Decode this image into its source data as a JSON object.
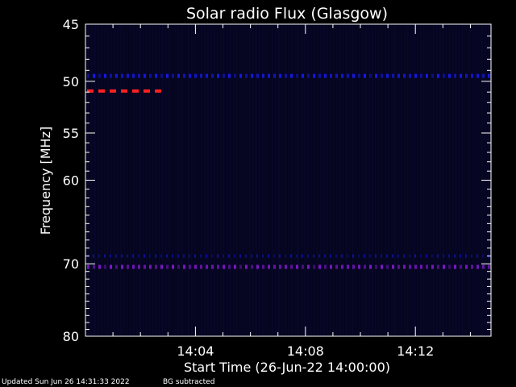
{
  "chart_data": {
    "type": "heatmap",
    "title": "Solar radio Flux (Glasgow)",
    "ylabel": "Frequency [MHz]",
    "xlabel": "Start Time (26-Jun-22 14:00:00)",
    "y_ticks": [
      45,
      50,
      55,
      60,
      70,
      80
    ],
    "ylim": [
      45,
      80
    ],
    "y_scale": "log",
    "x_ticks": [
      "14:04",
      "14:08",
      "14:12"
    ],
    "xlim": [
      "14:00:00",
      "14:14:45"
    ],
    "grid": false,
    "colors": {
      "background": "#000000",
      "plot_background": "#05051f",
      "axis": "#ffffff",
      "band_blue": "#1a1aff",
      "band_red": "#ff2020",
      "band_purple": "#8a1ad8"
    },
    "features": [
      {
        "frequency_mhz": 49.5,
        "start": "14:00:00",
        "end": "14:14:45",
        "intensity": "medium",
        "color": "blue"
      },
      {
        "frequency_mhz": 50.9,
        "start": "14:00:00",
        "end": "14:03:00",
        "intensity": "high",
        "color": "red"
      },
      {
        "frequency_mhz": 69.0,
        "start": "14:00:00",
        "end": "14:14:45",
        "intensity": "low",
        "color": "blue"
      },
      {
        "frequency_mhz": 70.4,
        "start": "14:00:00",
        "end": "14:14:45",
        "intensity": "medium",
        "color": "purple"
      }
    ]
  },
  "footer": {
    "updated": "Updated Sun Jun 26 14:31:33 2022",
    "bg_note": "BG subtracted"
  }
}
